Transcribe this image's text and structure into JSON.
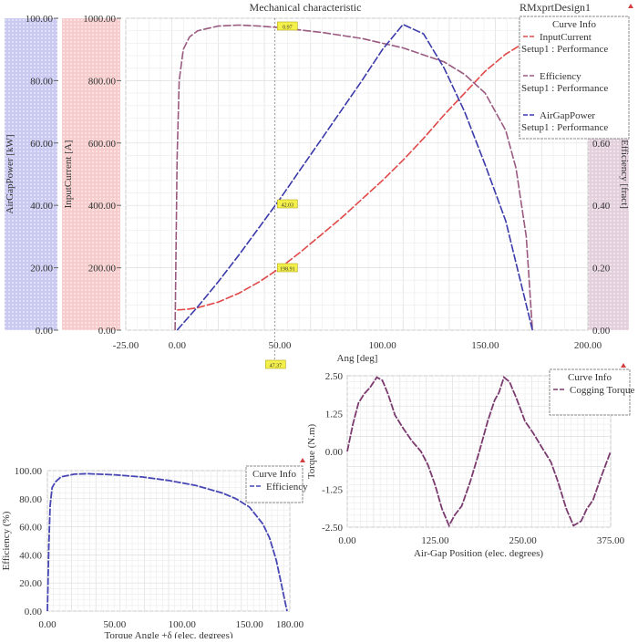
{
  "chart_data": [
    {
      "type": "line",
      "title": "Mechanical characteristic",
      "design_label": "RMxprtDesign1",
      "xlabel": "Ang [deg]",
      "xlim": [
        -25,
        200
      ],
      "xticks": [
        "-25.00",
        "0.00",
        "50.00",
        "100.00",
        "150.00",
        "200.00"
      ],
      "xtick_values": [
        -25,
        0,
        50,
        100,
        150,
        200
      ],
      "grid": true,
      "legend_title": "Curve Info",
      "legend_position": "top-right",
      "axes": [
        {
          "id": "power",
          "label": "AirGapPower [kW]",
          "ylim": [
            0,
            100
          ],
          "ticks": [
            "0.00",
            "20.00",
            "40.00",
            "60.00",
            "80.00",
            "100.00"
          ],
          "band_color": "#c9c9f2"
        },
        {
          "id": "current",
          "label": "InputCurrent [A]",
          "ylim": [
            0,
            1000
          ],
          "ticks": [
            "0.00",
            "200.00",
            "400.00",
            "600.00",
            "800.00",
            "1000.00"
          ],
          "band_color": "#f6cccc"
        },
        {
          "id": "eff",
          "label": "Efficiency [fract]",
          "ylim": [
            0,
            1
          ],
          "ticks": [
            "0.00",
            "0.20",
            "0.40",
            "0.60"
          ],
          "band_color": "#e3d0dc"
        }
      ],
      "series": [
        {
          "name": "InputCurrent",
          "source": "Setup1 : Performance",
          "axis": "current",
          "color": "#e04848",
          "x": [
            0,
            5,
            10,
            20,
            30,
            40,
            50,
            60,
            70,
            80,
            90,
            100,
            110,
            120,
            130,
            140,
            150,
            160,
            170,
            172
          ],
          "y": [
            65,
            67,
            72,
            90,
            118,
            155,
            199,
            250,
            305,
            360,
            420,
            480,
            545,
            615,
            690,
            760,
            830,
            885,
            925,
            930
          ]
        },
        {
          "name": "Efficiency",
          "source": "Setup1 : Performance",
          "axis": "eff",
          "color": "#9a5a80",
          "x": [
            -1,
            0,
            1,
            3,
            6,
            10,
            20,
            30,
            40,
            50,
            70,
            90,
            110,
            130,
            140,
            150,
            160,
            165,
            170,
            172,
            173
          ],
          "y": [
            0,
            0.55,
            0.8,
            0.9,
            0.94,
            0.96,
            0.975,
            0.978,
            0.975,
            0.97,
            0.955,
            0.935,
            0.905,
            0.86,
            0.82,
            0.76,
            0.64,
            0.52,
            0.3,
            0.1,
            0
          ]
        },
        {
          "name": "AirGapPower",
          "source": "Setup1 : Performance",
          "axis": "power",
          "color": "#3a3aaa",
          "x": [
            0,
            10,
            20,
            30,
            40,
            50,
            60,
            70,
            80,
            90,
            100,
            110,
            120,
            130,
            140,
            150,
            160,
            173
          ],
          "y": [
            0,
            7.5,
            15.5,
            24,
            33,
            42,
            51.5,
            61,
            70.5,
            80,
            90,
            98,
            95,
            84,
            70,
            53,
            35,
            0
          ]
        }
      ],
      "markers": [
        {
          "label": "0.97",
          "series": "Efficiency"
        },
        {
          "label": "42.03",
          "series": "AirGapPower"
        },
        {
          "label": "198.91",
          "series": "InputCurrent"
        },
        {
          "label": "47.37",
          "axis": "x"
        }
      ]
    },
    {
      "type": "line",
      "xlabel": "Air-Gap Position (elec. degrees)",
      "ylabel": "Torque (N.m)",
      "xlim": [
        0,
        375
      ],
      "ylim": [
        -2.5,
        2.5
      ],
      "xticks": [
        "0.00",
        "125.00",
        "250.00",
        "375.00"
      ],
      "xtick_values": [
        0,
        125,
        250,
        375
      ],
      "yticks": [
        "-2.50",
        "-1.25",
        "0.00",
        "1.25",
        "2.50"
      ],
      "ytick_values": [
        -2.5,
        -1.25,
        0,
        1.25,
        2.5
      ],
      "grid": true,
      "legend_title": "Curve Info",
      "legend_position": "top-right",
      "series": [
        {
          "name": "Cogging Torque",
          "color": "#7a3a6e",
          "x": [
            0,
            8,
            16,
            24,
            32,
            42,
            50,
            58,
            68,
            80,
            92,
            105,
            115,
            125,
            135,
            145,
            153,
            163,
            175,
            188,
            200,
            210,
            216,
            223,
            231,
            241,
            253,
            265,
            278,
            290,
            300,
            312,
            322,
            333,
            341,
            350,
            362,
            375
          ],
          "y": [
            0,
            0.9,
            1.6,
            1.9,
            2.1,
            2.45,
            2.35,
            1.9,
            1.2,
            0.75,
            0.35,
            0.0,
            -0.45,
            -1.1,
            -1.9,
            -2.45,
            -2.1,
            -1.8,
            -1.0,
            0.0,
            1.0,
            1.7,
            1.95,
            2.45,
            2.3,
            1.75,
            1.0,
            0.6,
            0.1,
            -0.35,
            -1.0,
            -1.9,
            -2.45,
            -2.3,
            -1.9,
            -1.6,
            -0.8,
            0.0
          ]
        }
      ]
    },
    {
      "type": "line",
      "xlabel": "Torque Angle +δ (elec. degrees)",
      "ylabel": "Efficiency (%)",
      "xlim": [
        0,
        180
      ],
      "ylim": [
        0,
        100
      ],
      "xticks": [
        "0.00",
        "50.00",
        "100.00",
        "150.00",
        "180.00"
      ],
      "xtick_values": [
        0,
        50,
        100,
        150,
        180
      ],
      "yticks": [
        "0.00",
        "20.00",
        "40.00",
        "60.00",
        "80.00",
        "100.00"
      ],
      "ytick_values": [
        0,
        20,
        40,
        60,
        80,
        100
      ],
      "grid": true,
      "legend_title": "Curve Info",
      "legend_position": "top-right",
      "series": [
        {
          "name": "Efficiency",
          "color": "#4646b4",
          "x": [
            0,
            1,
            2,
            3.5,
            6,
            10,
            20,
            30,
            50,
            70,
            90,
            110,
            130,
            140,
            150,
            160,
            165,
            170,
            174,
            177,
            178
          ],
          "y": [
            0,
            45,
            75,
            88,
            92,
            95.5,
            97.5,
            97.8,
            97,
            95.5,
            93,
            89.5,
            84,
            80,
            74,
            62,
            52,
            36,
            18,
            4,
            0
          ]
        }
      ]
    }
  ]
}
